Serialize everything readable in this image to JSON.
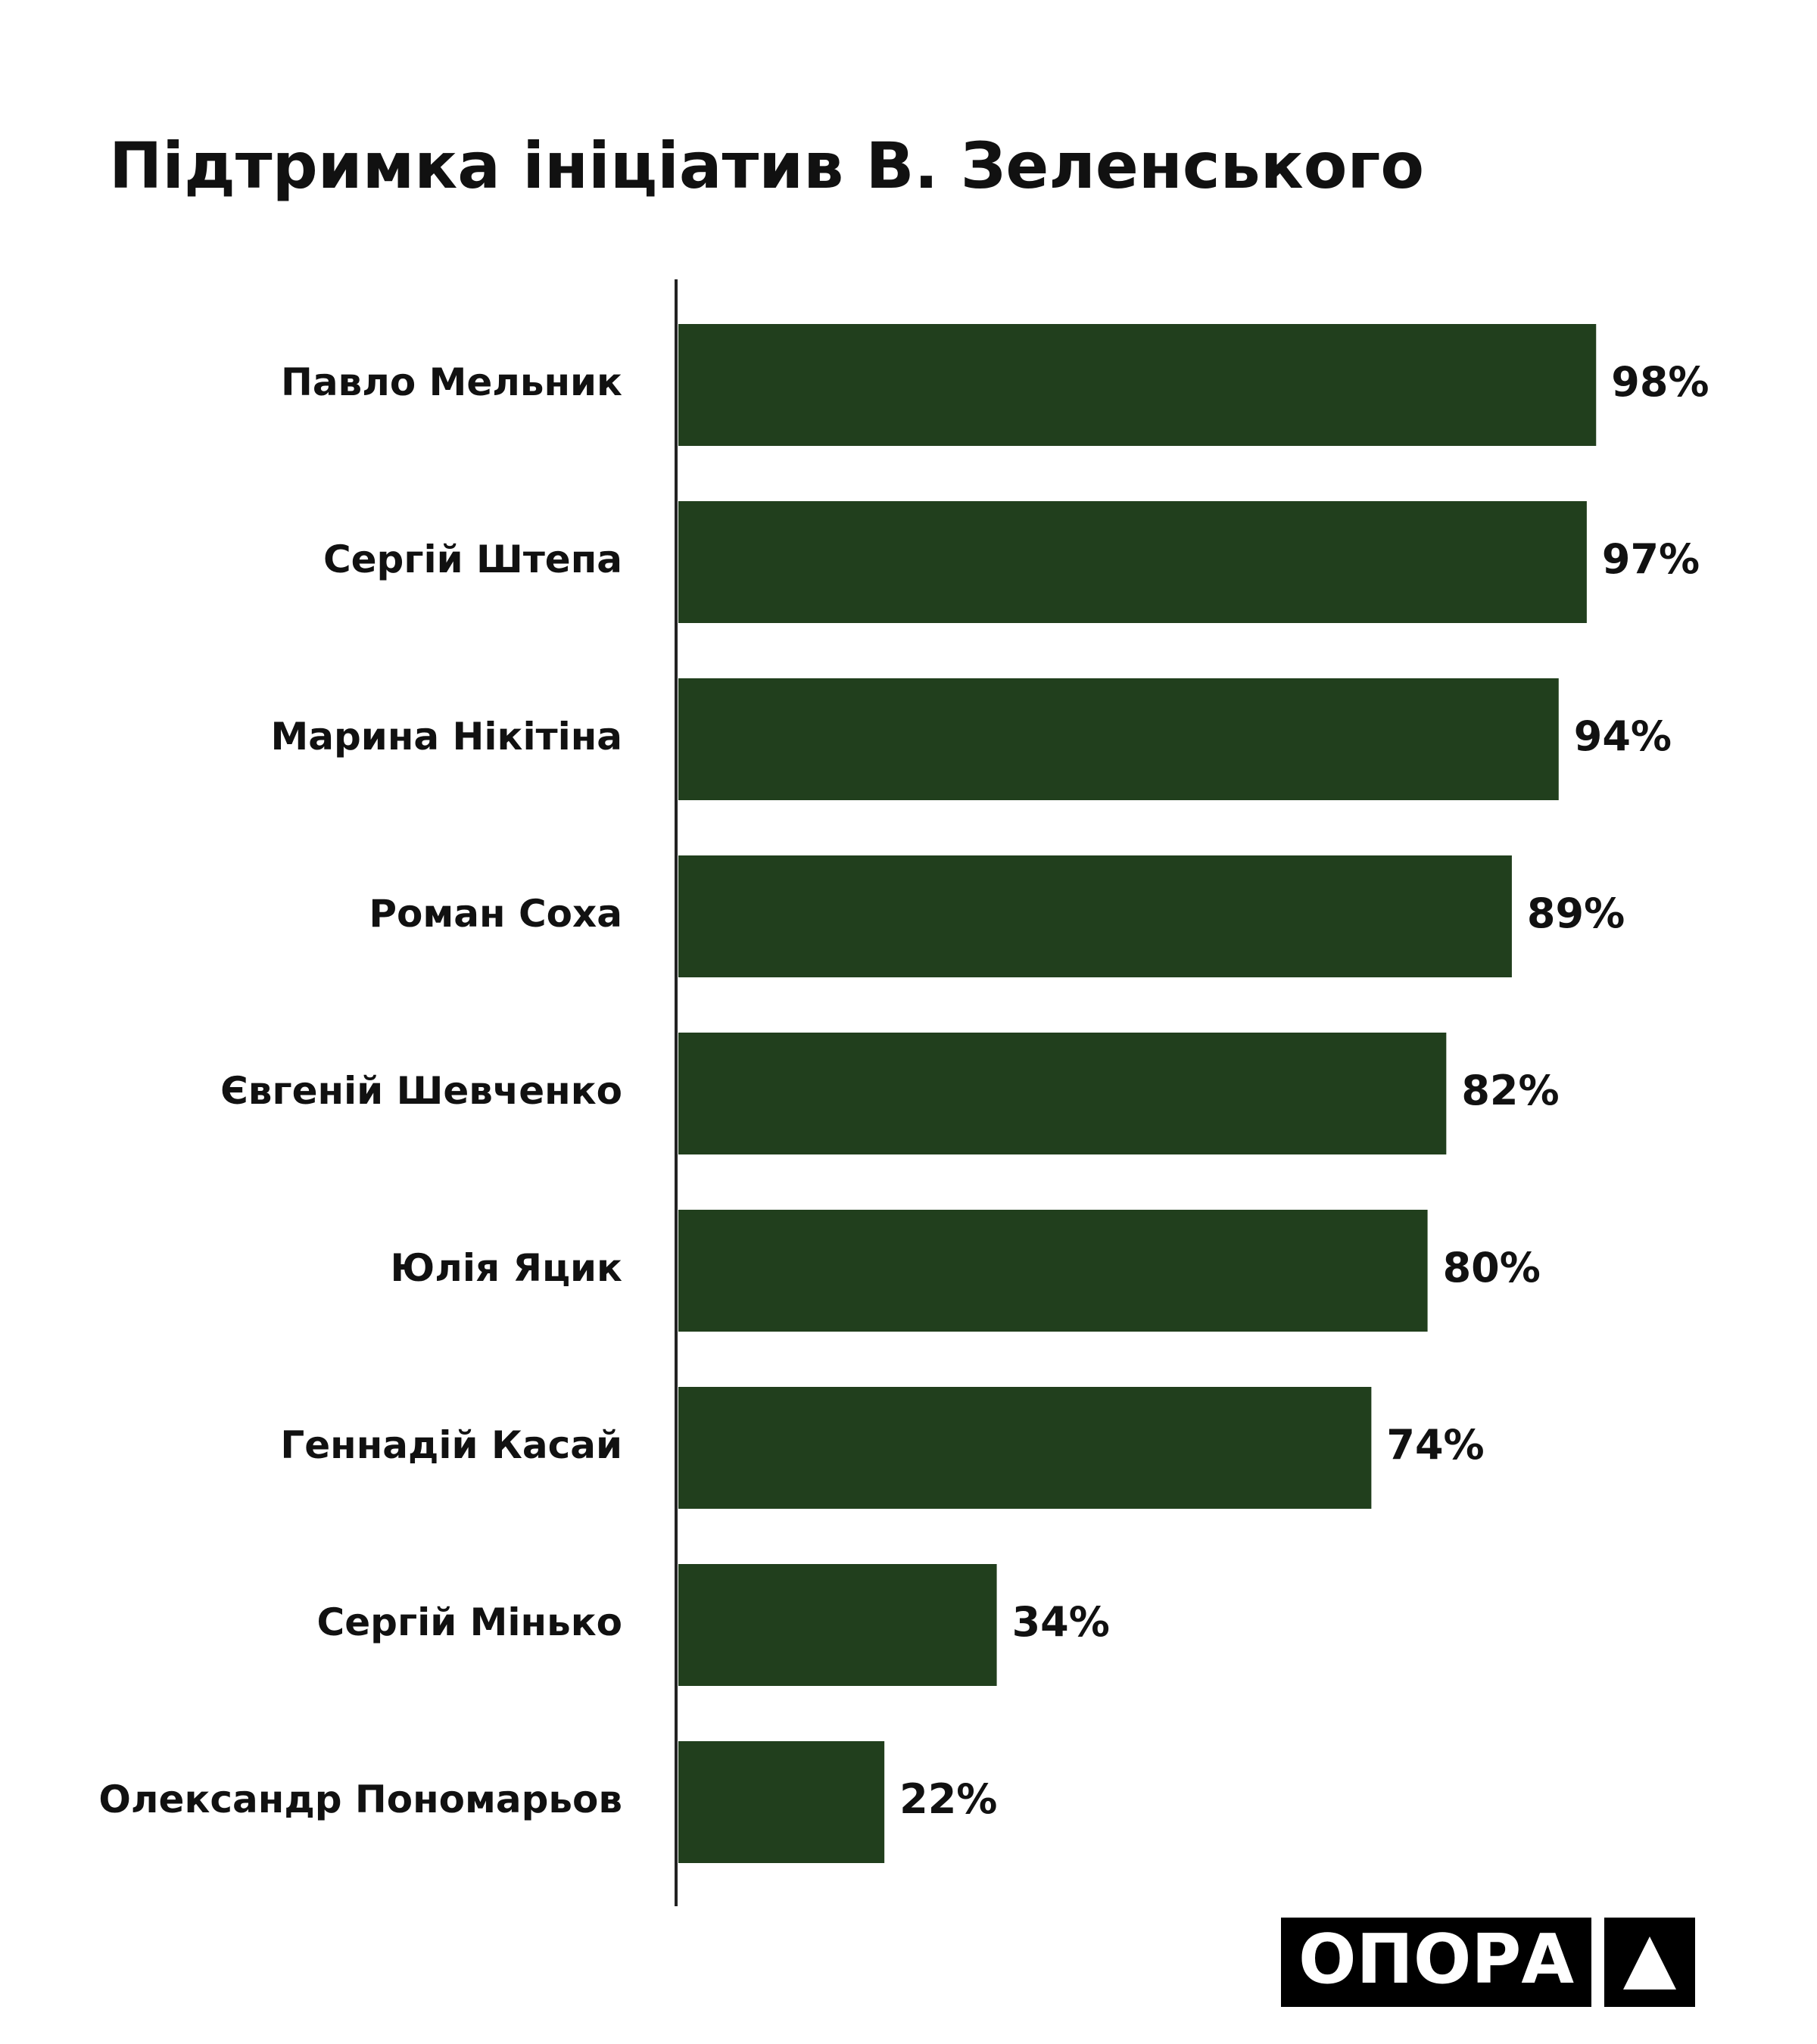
{
  "chart_data": {
    "type": "bar",
    "orientation": "horizontal",
    "title": "Підтримка ініціатив В. Зеленського",
    "categories": [
      "Павло Мельник",
      "Сергій Штепа",
      "Марина Нікітіна",
      "Роман Соха",
      "Євгеній Шевченко",
      "Юлія Яцик",
      "Геннадій Касай",
      "Сергій Мінько",
      "Олександр Пономарьов"
    ],
    "values": [
      98,
      97,
      94,
      89,
      82,
      80,
      74,
      34,
      22
    ],
    "value_labels": [
      "98%",
      "97%",
      "94%",
      "89%",
      "82%",
      "80%",
      "74%",
      "34%",
      "22%"
    ],
    "color": "#213f1d",
    "logo": "ОПОРА"
  }
}
